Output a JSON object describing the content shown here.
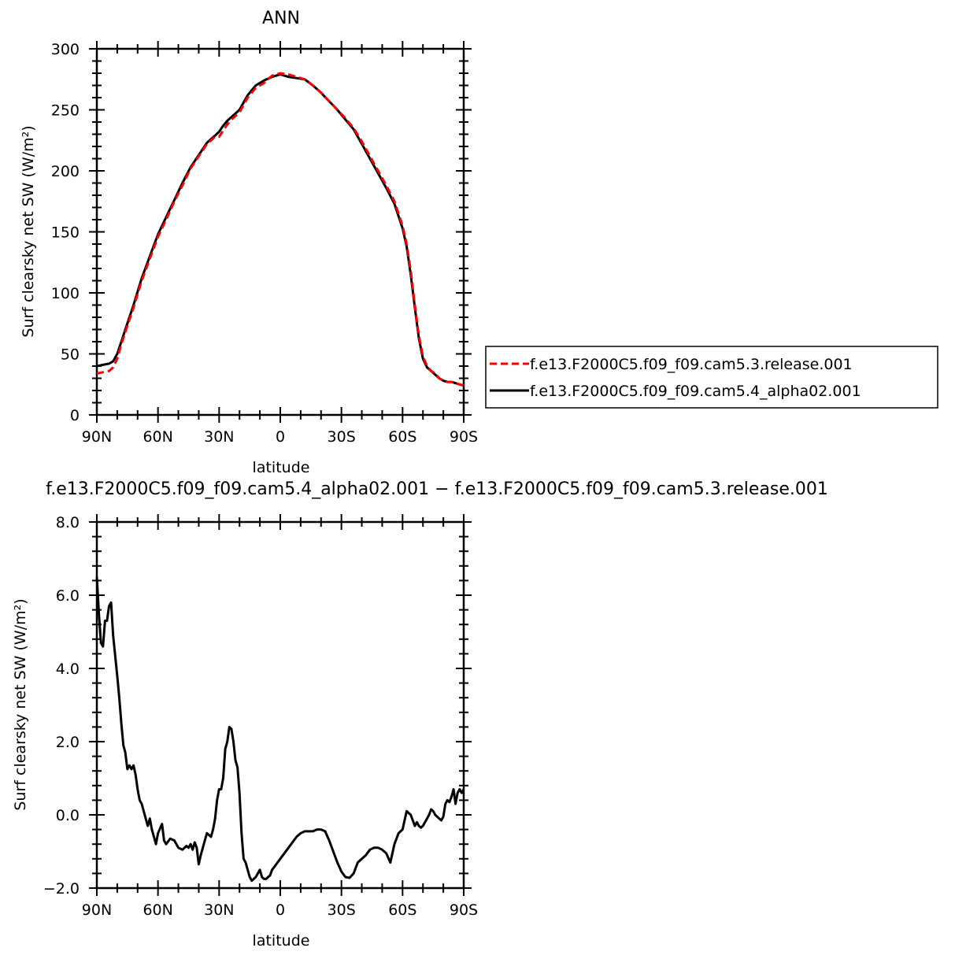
{
  "chart_data": [
    {
      "type": "line",
      "title": "ANN",
      "xlabel": "latitude",
      "ylabel": "Surf clearsky net SW (W/m²)",
      "x_ticks": [
        "90N",
        "60N",
        "30N",
        "0",
        "30S",
        "60S",
        "90S"
      ],
      "y_ticks": [
        "0",
        "50",
        "100",
        "150",
        "200",
        "250",
        "300"
      ],
      "xlim": [
        90,
        -90
      ],
      "ylim": [
        0,
        300
      ],
      "legend": "right",
      "series": [
        {
          "name": "f.e13.F2000C5.f09_f09.cam5.3.release.001",
          "color": "#ff0000",
          "dash": "dashed",
          "x": [
            90,
            87,
            84,
            82,
            80,
            78,
            76,
            72,
            68,
            64,
            60,
            56,
            52,
            48,
            44,
            40,
            36,
            32,
            30,
            28,
            26,
            24,
            20,
            16,
            12,
            8,
            4,
            0,
            -4,
            -8,
            -12,
            -16,
            -20,
            -24,
            -28,
            -32,
            -36,
            -40,
            -44,
            -48,
            -52,
            -56,
            -60,
            -62,
            -64,
            -66,
            -68,
            -70,
            -72,
            -74,
            -76,
            -78,
            -80,
            -82,
            -84,
            -86,
            -88,
            -90
          ],
          "y": [
            34,
            35,
            36,
            39,
            46,
            58,
            68,
            88,
            110,
            128,
            146,
            160,
            175,
            188,
            202,
            212,
            222,
            228,
            228,
            233,
            238,
            242,
            248,
            260,
            268,
            272,
            278,
            280,
            279,
            277,
            275,
            270,
            264,
            257,
            250,
            243,
            235,
            224,
            212,
            200,
            188,
            175,
            155,
            140,
            118,
            90,
            65,
            48,
            40,
            36,
            34,
            30,
            28,
            27,
            27,
            26,
            25,
            24
          ]
        },
        {
          "name": "f.e13.F2000C5.f09_f09.cam5.4_alpha02.001",
          "color": "#000000",
          "dash": "solid",
          "x": [
            90,
            87,
            84,
            82,
            80,
            78,
            76,
            72,
            68,
            64,
            60,
            56,
            52,
            48,
            44,
            40,
            36,
            32,
            30,
            28,
            26,
            24,
            20,
            16,
            12,
            8,
            4,
            0,
            -4,
            -8,
            -12,
            -16,
            -20,
            -24,
            -28,
            -32,
            -36,
            -40,
            -44,
            -48,
            -52,
            -56,
            -60,
            -62,
            -64,
            -66,
            -68,
            -70,
            -72,
            -74,
            -76,
            -78,
            -80,
            -82,
            -84,
            -86,
            -88,
            -90
          ],
          "y": [
            40,
            41,
            42,
            44,
            50,
            60,
            70,
            90,
            112,
            130,
            148,
            162,
            176,
            190,
            203,
            213,
            223,
            229,
            232,
            237,
            241,
            244,
            250,
            262,
            270,
            274,
            277,
            279,
            277,
            276,
            275,
            270,
            264,
            257,
            250,
            242,
            234,
            222,
            210,
            198,
            186,
            173,
            153,
            138,
            115,
            88,
            63,
            46,
            39,
            36,
            33,
            30,
            28,
            27,
            27,
            26,
            25,
            24
          ]
        }
      ]
    },
    {
      "type": "line",
      "title": "f.e13.F2000C5.f09_f09.cam5.4_alpha02.001 − f.e13.F2000C5.f09_f09.cam5.3.release.001",
      "xlabel": "latitude",
      "ylabel": "Surf clearsky net SW (W/m²)",
      "x_ticks": [
        "90N",
        "60N",
        "30N",
        "0",
        "30S",
        "60S",
        "90S"
      ],
      "y_ticks": [
        "−2.0",
        "0.0",
        "2.0",
        "4.0",
        "6.0",
        "8.0"
      ],
      "xlim": [
        90,
        -90
      ],
      "ylim": [
        -2,
        8
      ],
      "series": [
        {
          "color": "#000000",
          "x": [
            90,
            89,
            88,
            87,
            86,
            85,
            84,
            83,
            82,
            80,
            79,
            78,
            77,
            76,
            75,
            74,
            73,
            72,
            71,
            70,
            69,
            68,
            67,
            66,
            65,
            64,
            63,
            62,
            61,
            60,
            58,
            57,
            56,
            54,
            52,
            50,
            48,
            46,
            45,
            44,
            43,
            42,
            41,
            40,
            39,
            38,
            37,
            36,
            34,
            33,
            32,
            31,
            30,
            29,
            28,
            27,
            26,
            25,
            24,
            23,
            22,
            21,
            20,
            19,
            18,
            17,
            16,
            15,
            14,
            12,
            10,
            9,
            8,
            7,
            6,
            5,
            4,
            2,
            0,
            -2,
            -4,
            -6,
            -8,
            -10,
            -12,
            -14,
            -16,
            -18,
            -20,
            -22,
            -24,
            -26,
            -28,
            -30,
            -32,
            -34,
            -36,
            -38,
            -40,
            -42,
            -44,
            -46,
            -48,
            -50,
            -52,
            -54,
            -56,
            -58,
            -60,
            -62,
            -64,
            -66,
            -67,
            -68,
            -69,
            -70,
            -71,
            -72,
            -73,
            -74,
            -75,
            -76,
            -78,
            -79,
            -80,
            -81,
            -82,
            -83,
            -84,
            -85,
            -86,
            -87,
            -88,
            -89,
            -90
          ],
          "y": [
            6.5,
            5.5,
            4.7,
            4.6,
            5.3,
            5.3,
            5.7,
            5.8,
            4.9,
            3.8,
            3.2,
            2.5,
            1.9,
            1.7,
            1.25,
            1.35,
            1.25,
            1.35,
            1.1,
            0.7,
            0.4,
            0.3,
            0.1,
            -0.1,
            -0.3,
            -0.1,
            -0.4,
            -0.6,
            -0.8,
            -0.5,
            -0.25,
            -0.7,
            -0.8,
            -0.65,
            -0.7,
            -0.9,
            -0.95,
            -0.85,
            -0.9,
            -0.8,
            -0.95,
            -0.75,
            -0.9,
            -1.35,
            -1.1,
            -0.9,
            -0.7,
            -0.5,
            -0.6,
            -0.4,
            -0.1,
            0.4,
            0.7,
            0.7,
            1.0,
            1.8,
            2.0,
            2.4,
            2.35,
            2.0,
            1.5,
            1.3,
            0.6,
            -0.5,
            -1.2,
            -1.3,
            -1.5,
            -1.7,
            -1.8,
            -1.7,
            -1.5,
            -1.7,
            -1.75,
            -1.75,
            -1.7,
            -1.65,
            -1.5,
            -1.35,
            -1.2,
            -1.05,
            -0.9,
            -0.75,
            -0.6,
            -0.5,
            -0.45,
            -0.45,
            -0.45,
            -0.4,
            -0.4,
            -0.45,
            -0.7,
            -1.0,
            -1.3,
            -1.55,
            -1.7,
            -1.72,
            -1.6,
            -1.3,
            -1.2,
            -1.1,
            -0.95,
            -0.9,
            -0.9,
            -0.95,
            -1.05,
            -1.3,
            -0.8,
            -0.5,
            -0.4,
            0.1,
            0.0,
            -0.3,
            -0.2,
            -0.3,
            -0.35,
            -0.3,
            -0.2,
            -0.1,
            0.0,
            0.15,
            0.1,
            0.0,
            -0.1,
            -0.15,
            -0.05,
            0.3,
            0.4,
            0.35,
            0.5,
            0.7,
            0.3,
            0.6,
            0.7,
            0.6,
            0.7
          ]
        }
      ]
    }
  ]
}
